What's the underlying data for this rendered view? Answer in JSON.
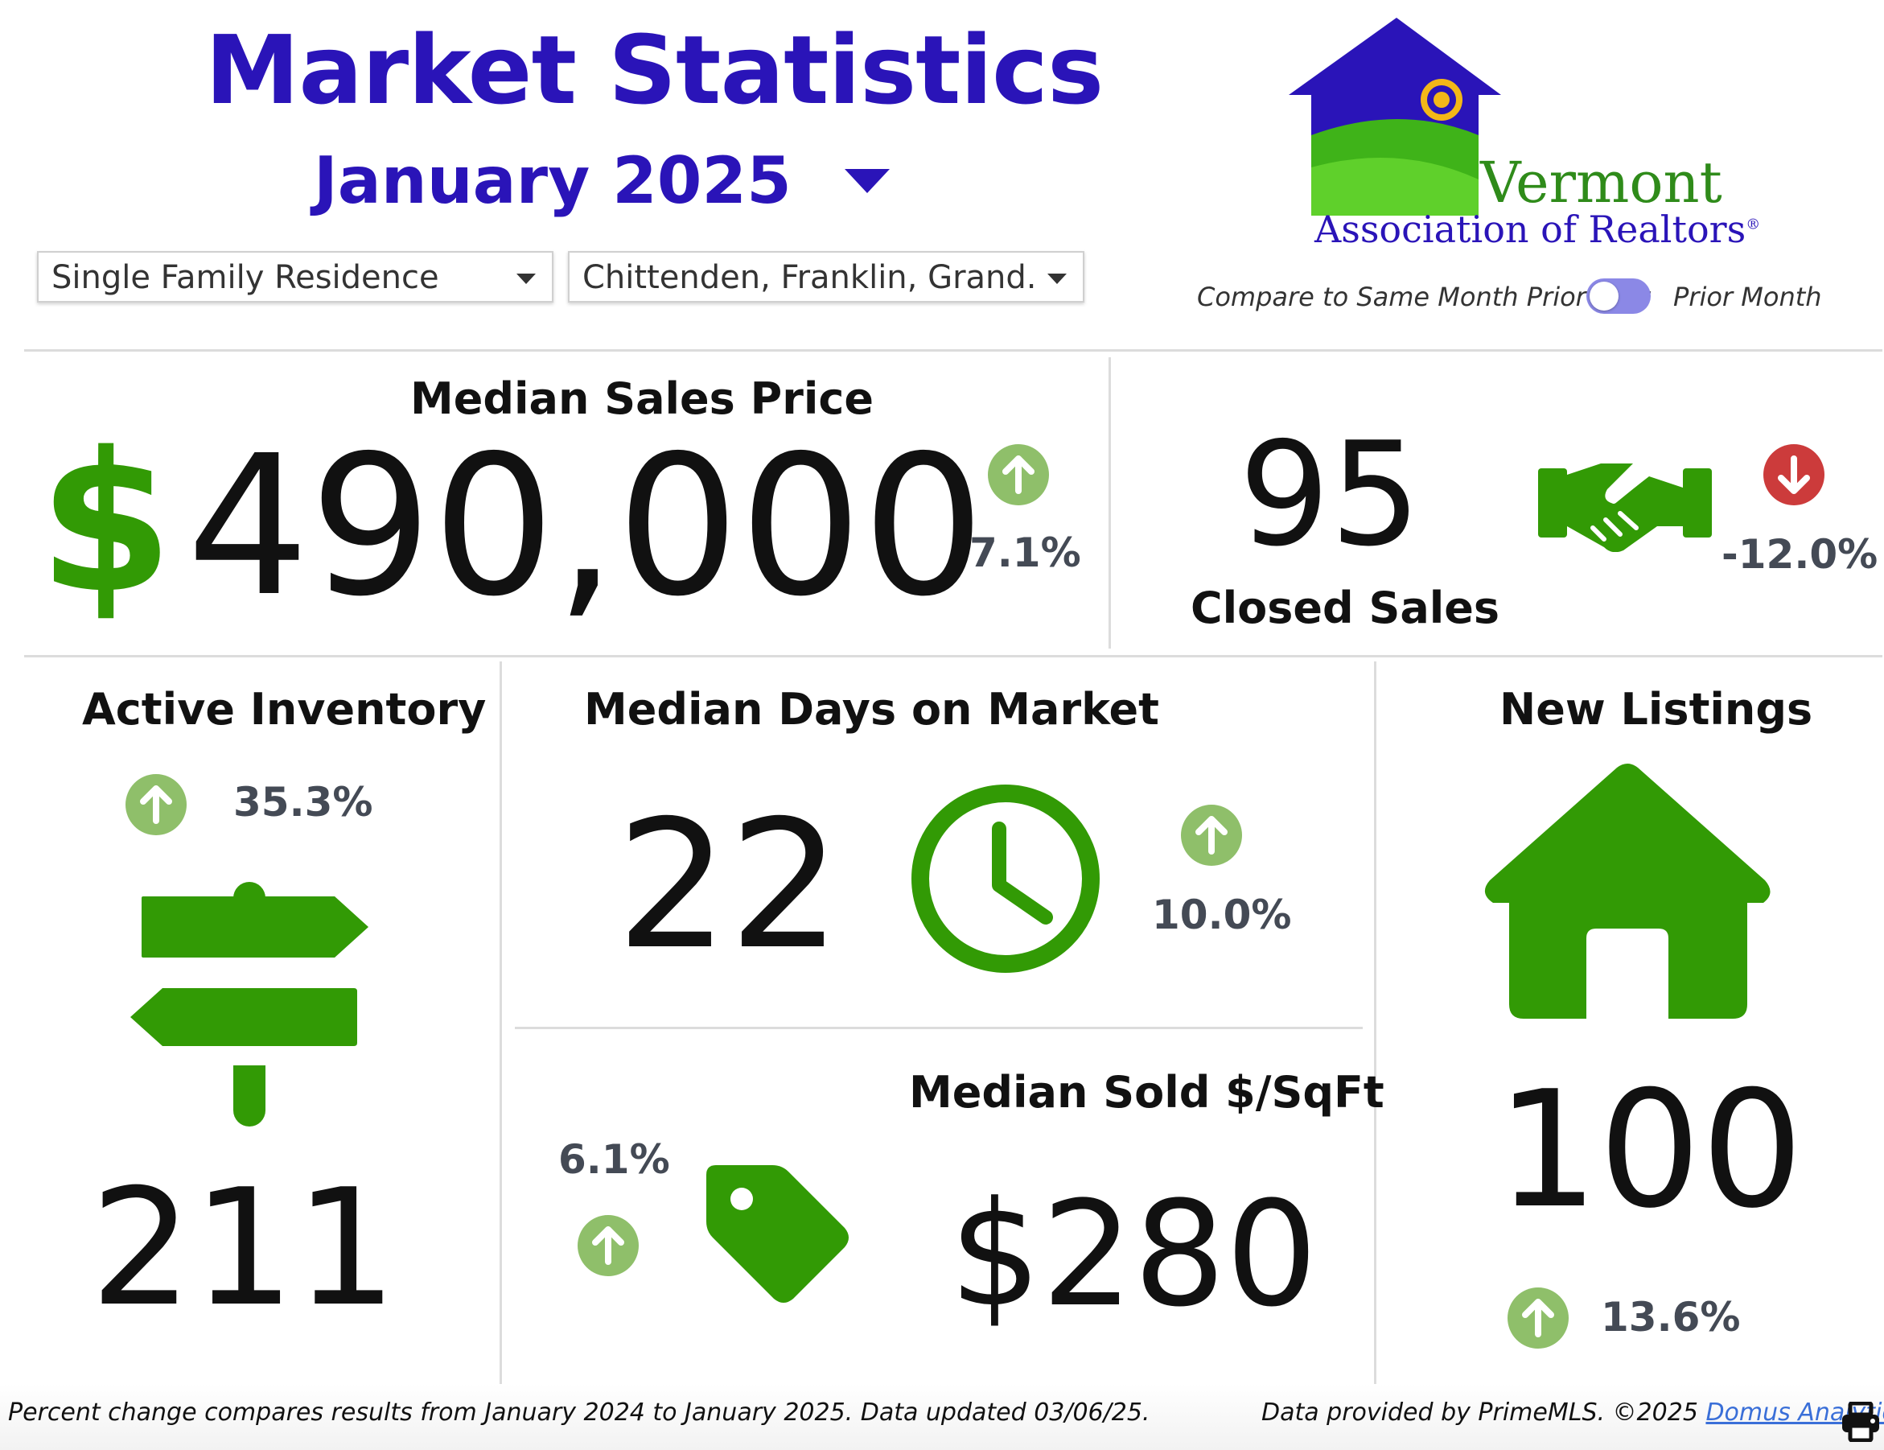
{
  "header": {
    "title": "Market Statistics",
    "month": "January 2025"
  },
  "filters": {
    "property_type": "Single Family Residence",
    "counties": "Chittenden, Franklin, Grand..."
  },
  "logo": {
    "line1": "Vermont",
    "line2": "Association of Realtors",
    "reg": "®"
  },
  "compare": {
    "left_label": "Compare to Same Month Prior Year",
    "right_label": "Prior Month",
    "mode": "prior-year"
  },
  "median_sales_price": {
    "label": "Median Sales Price",
    "currency": "$",
    "value": "490,000",
    "change": "7.1%",
    "direction": "up"
  },
  "closed_sales": {
    "label": "Closed Sales",
    "value": "95",
    "change": "-12.0%",
    "direction": "down"
  },
  "active_inventory": {
    "label": "Active Inventory",
    "value": "211",
    "change": "35.3%",
    "direction": "up"
  },
  "median_days": {
    "label": "Median Days on Market",
    "value": "22",
    "change": "10.0%",
    "direction": "up"
  },
  "median_sqft": {
    "label": "Median Sold $/SqFt",
    "value": "$280",
    "change": "6.1%",
    "direction": "up"
  },
  "new_listings": {
    "label": "New Listings",
    "value": "100",
    "change": "13.6%",
    "direction": "up"
  },
  "footer": {
    "note": "Percent change compares results from January 2024 to January 2025.  Data updated 03/06/25.",
    "provided": "Data provided by PrimeMLS. ©2025 ",
    "link": "Domus Analytics"
  },
  "colors": {
    "brand_blue": "#2a14b8",
    "icon_green": "#329a05",
    "up_green": "#8fbf6a",
    "down_red": "#cc3b3b",
    "toggle": "#8b88e6"
  }
}
